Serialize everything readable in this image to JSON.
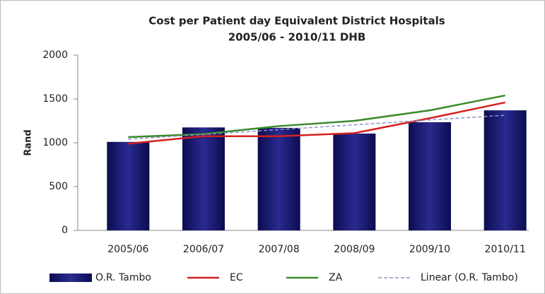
{
  "chart_data": {
    "type": "bar",
    "title": "Cost per Patient day Equivalent District Hospitals",
    "subtitle": "2005/06 - 2010/11 DHB",
    "y_label": "Rand",
    "categories": [
      "2005/06",
      "2006/07",
      "2007/08",
      "2008/09",
      "2009/10",
      "2010/11"
    ],
    "series": [
      {
        "name": "O.R. Tambo",
        "type": "bar",
        "color": "#14146b",
        "values": [
          1010,
          1175,
          1170,
          1105,
          1235,
          1370
        ]
      },
      {
        "name": "EC",
        "type": "line",
        "color": "#d42020",
        "values": [
          990,
          1075,
          1075,
          1110,
          1280,
          1460
        ]
      },
      {
        "name": "ZA",
        "type": "line",
        "color": "#3a8a2a",
        "values": [
          1065,
          1100,
          1190,
          1250,
          1370,
          1540
        ]
      },
      {
        "name": "Linear (O.R. Tambo)",
        "type": "line",
        "dashed": true,
        "color": "#8a96c8",
        "values": [
          1041,
          1095,
          1150,
          1205,
          1260,
          1314
        ]
      }
    ],
    "ylim": [
      0,
      2000
    ],
    "yticks": [
      0,
      500,
      1000,
      1500,
      2000
    ],
    "grid": false,
    "legend": "bottom"
  }
}
